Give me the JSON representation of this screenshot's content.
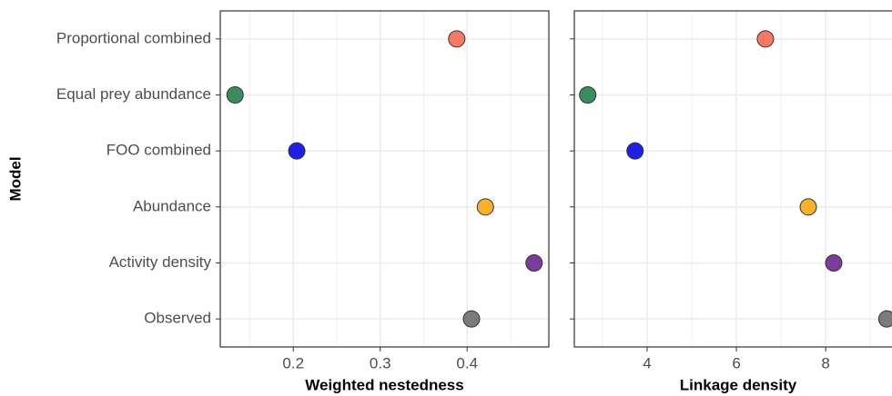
{
  "chart_data": [
    {
      "type": "dot",
      "ylabel": "Model",
      "xlabel": "Weighted nestedness",
      "categories": [
        "Proportional combined",
        "Equal prey abundance",
        "FOO combined",
        "Abundance",
        "Activity density",
        "Observed"
      ],
      "colors": [
        "#f67a63",
        "#3a8c5c",
        "#1f1fe6",
        "#f8b12c",
        "#7a3d9b",
        "#7a7a7a"
      ],
      "values": [
        0.388,
        0.133,
        0.204,
        0.421,
        0.477,
        0.405
      ],
      "xlim": [
        0.116,
        0.494
      ],
      "xticks": [
        0.2,
        0.3,
        0.4
      ],
      "minor_xticks": [
        0.15,
        0.25,
        0.35,
        0.45
      ],
      "grid": true
    },
    {
      "type": "dot",
      "xlabel": "Linkage density",
      "values": [
        6.65,
        2.67,
        3.73,
        7.61,
        8.18,
        9.37
      ],
      "xlim": [
        2.37,
        9.73
      ],
      "xticks": [
        4,
        6,
        8
      ],
      "minor_xticks": [
        3,
        5,
        7,
        9
      ],
      "grid": true
    }
  ]
}
